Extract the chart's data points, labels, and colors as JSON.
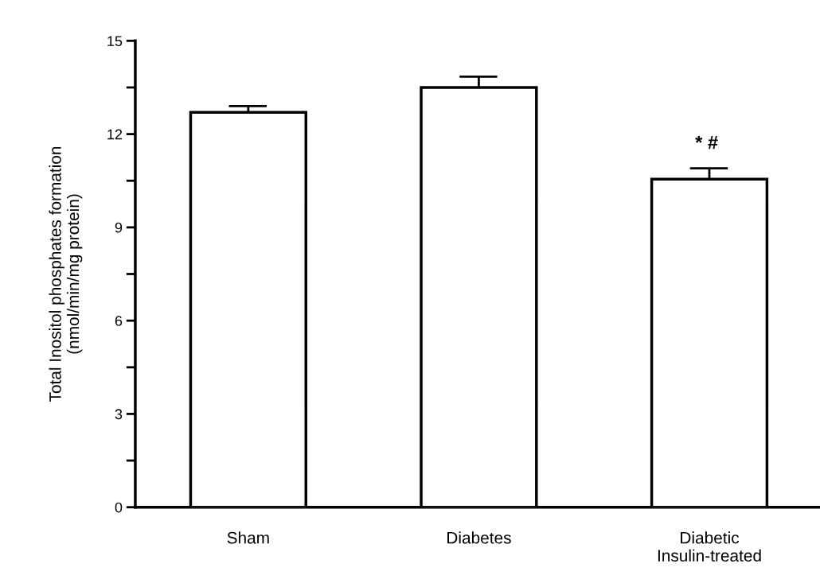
{
  "chart_data": {
    "type": "bar",
    "ylabel": "Total Inositol phosphates formation\n(nmol/min/mg protein)",
    "categories": [
      "Sham",
      "Diabetes",
      "Diabetic\nInsulin-treated"
    ],
    "values": [
      12.7,
      13.5,
      10.55
    ],
    "errors": [
      [
        12.7,
        12.9
      ],
      [
        13.5,
        13.85
      ],
      [
        10.55,
        10.9
      ]
    ],
    "color": "#ffffff",
    "ylim": [
      0,
      15
    ],
    "yticks": [
      0,
      {
        "value": 1.5,
        "label": null
      },
      3,
      {
        "value": 4.5,
        "label": null
      },
      6,
      {
        "value": 7.5,
        "label": null
      },
      9,
      {
        "value": 10.5,
        "label": null
      },
      12,
      {
        "value": 13.5,
        "label": null
      },
      15
    ],
    "annotations": [
      "* #"
    ],
    "grid": false,
    "legend": false
  }
}
